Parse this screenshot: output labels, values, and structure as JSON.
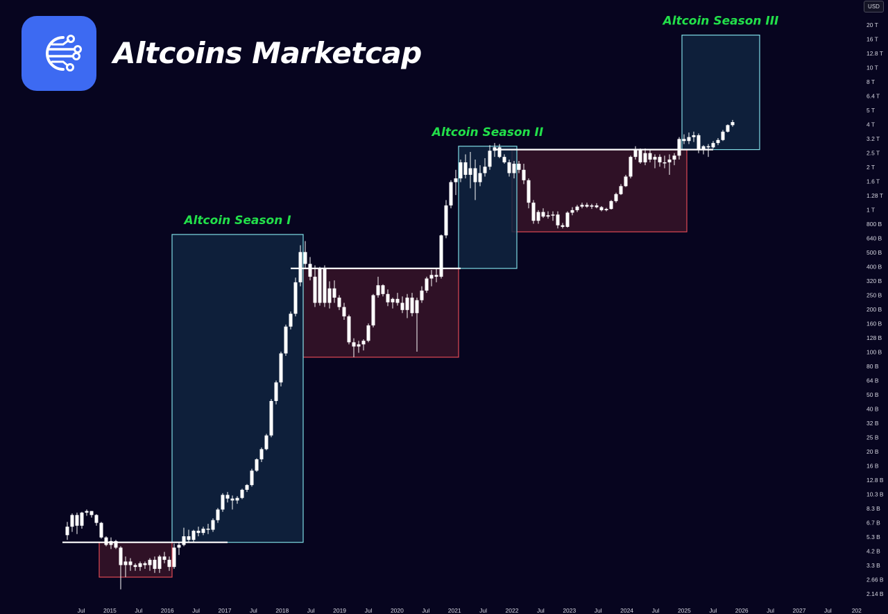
{
  "header": {
    "title": "Altcoins Marketcap",
    "logo_icon": "connected-nodes-icon",
    "logo_color": "#3d6af2"
  },
  "price_axis": {
    "currency": "USD",
    "labels": [
      "20 T",
      "16 T",
      "12.8 T",
      "10 T",
      "8 T",
      "6.4 T",
      "5 T",
      "4 T",
      "3.2 T",
      "2.5 T",
      "2 T",
      "1.6 T",
      "1.28 T",
      "1 T",
      "800 B",
      "640 B",
      "500 B",
      "400 B",
      "320 B",
      "250 B",
      "200 B",
      "160 B",
      "128 B",
      "100 B",
      "80 B",
      "64 B",
      "50 B",
      "40 B",
      "32 B",
      "25 B",
      "20 B",
      "16 B",
      "12.8 B",
      "10.3 B",
      "8.3 B",
      "6.7 B",
      "5.3 B",
      "4.2 B",
      "3.3 B",
      "2.66 B",
      "2.14 B"
    ]
  },
  "time_axis": {
    "labels": [
      "Jul",
      "2015",
      "Jul",
      "2016",
      "Jul",
      "2017",
      "Jul",
      "2018",
      "Jul",
      "2019",
      "Jul",
      "2020",
      "Jul",
      "2021",
      "Jul",
      "2022",
      "Jul",
      "2023",
      "Jul",
      "2024",
      "Jul",
      "2025",
      "Jul",
      "2026",
      "Jul",
      "2027",
      "Jul",
      "202"
    ]
  },
  "seasons": [
    {
      "label": "Altcoin Season I"
    },
    {
      "label": "Altcoin Season II"
    },
    {
      "label": "Altcoin Season III"
    }
  ],
  "colors": {
    "background": "#07051f",
    "season_label": "#22e04a",
    "season_box_border": "#7fdde6",
    "season_box_fill": "#0f2540",
    "range_box_border": "#e04a55",
    "range_box_fill": "#3a1428",
    "candle": "#ffffff",
    "axis_text": "#d6d6e0"
  },
  "chart_data": {
    "type": "candlestick",
    "scale": "log",
    "y_unit": "USD",
    "period": "monthly",
    "series": [
      {
        "name": "Altcoins Marketcap",
        "candles": [
          [
            "2014-06",
            5.5,
            6.8,
            5.1,
            6.3
          ],
          [
            "2014-07",
            6.3,
            7.8,
            5.8,
            7.6
          ],
          [
            "2014-08",
            7.6,
            7.9,
            5.6,
            6.4
          ],
          [
            "2014-09",
            6.4,
            8.0,
            6.1,
            7.9
          ],
          [
            "2014-10",
            7.9,
            8.3,
            7.5,
            8.1
          ],
          [
            "2014-11",
            8.1,
            8.1,
            7.3,
            7.6
          ],
          [
            "2014-12",
            7.6,
            7.7,
            6.4,
            6.7
          ],
          [
            "2015-01",
            6.7,
            6.8,
            5.2,
            5.3
          ],
          [
            "2015-02",
            5.3,
            5.4,
            4.6,
            4.7
          ],
          [
            "2015-03",
            4.7,
            5.3,
            4.4,
            5.0
          ],
          [
            "2015-04",
            5.0,
            5.1,
            4.4,
            4.5
          ],
          [
            "2015-05",
            4.5,
            4.6,
            2.3,
            3.4
          ],
          [
            "2015-06",
            3.4,
            3.9,
            2.8,
            3.6
          ],
          [
            "2015-07",
            3.6,
            3.8,
            3.1,
            3.4
          ],
          [
            "2015-08",
            3.4,
            3.5,
            3.1,
            3.3
          ],
          [
            "2015-09",
            3.3,
            3.6,
            3.1,
            3.5
          ],
          [
            "2015-10",
            3.5,
            3.6,
            3.2,
            3.4
          ],
          [
            "2015-11",
            3.4,
            3.8,
            3.1,
            3.7
          ],
          [
            "2015-12",
            3.7,
            3.9,
            3.0,
            3.2
          ],
          [
            "2016-01",
            3.2,
            4.0,
            3.0,
            3.9
          ],
          [
            "2016-02",
            3.9,
            4.2,
            3.5,
            3.7
          ],
          [
            "2016-03",
            3.7,
            3.9,
            3.1,
            3.3
          ],
          [
            "2016-04",
            3.3,
            4.8,
            3.2,
            4.5
          ],
          [
            "2016-05",
            4.5,
            4.9,
            4.0,
            4.7
          ],
          [
            "2016-06",
            4.7,
            6.2,
            4.6,
            5.4
          ],
          [
            "2016-07",
            5.4,
            6.0,
            4.9,
            5.1
          ],
          [
            "2016-08",
            5.1,
            6.0,
            4.9,
            5.9
          ],
          [
            "2016-09",
            5.9,
            6.3,
            5.4,
            5.7
          ],
          [
            "2016-10",
            5.7,
            6.3,
            5.5,
            6.1
          ],
          [
            "2016-11",
            6.1,
            6.6,
            5.6,
            6.0
          ],
          [
            "2016-12",
            6.0,
            7.2,
            5.8,
            7.0
          ],
          [
            "2017-01",
            7.0,
            8.5,
            6.7,
            8.3
          ],
          [
            "2017-02",
            8.3,
            10.8,
            8.0,
            10.5
          ],
          [
            "2017-03",
            10.5,
            11.0,
            9.3,
            9.9
          ],
          [
            "2017-04",
            9.9,
            10.4,
            8.3,
            9.6
          ],
          [
            "2017-05",
            9.6,
            10.3,
            9.1,
            10.0
          ],
          [
            "2017-06",
            10.0,
            11.6,
            9.8,
            11.4
          ],
          [
            "2017-07",
            11.4,
            12.5,
            11.0,
            12.3
          ],
          [
            "2017-08",
            12.3,
            16.0,
            12.0,
            15.5
          ],
          [
            "2017-09",
            15.5,
            18.9,
            15.2,
            18.6
          ],
          [
            "2017-10",
            18.6,
            22.5,
            17.8,
            21.9
          ],
          [
            "2017-11",
            21.9,
            28.0,
            21.5,
            27.3
          ],
          [
            "2017-12",
            27.3,
            49.0,
            26.5,
            47.5
          ],
          [
            "2018-01",
            47.5,
            66.0,
            45.0,
            64.0
          ],
          [
            "2018-02",
            64.0,
            105.0,
            60.0,
            102.0
          ],
          [
            "2018-03",
            102.0,
            162.0,
            98.0,
            157.0
          ],
          [
            "2018-04",
            157.0,
            200.0,
            150.0,
            193.0
          ],
          [
            "2018-05",
            193.0,
            345.0,
            185.0,
            320.0
          ],
          [
            "2018-06",
            320.0,
            580.0,
            300.0,
            520.0
          ],
          [
            "2018-07",
            520.0,
            620.0,
            395.0,
            430.0
          ],
          [
            "2018-08",
            430.0,
            480.0,
            330.0,
            350.0
          ],
          [
            "2018-09",
            350.0,
            420.0,
            215.0,
            230.0
          ],
          [
            "2018-10",
            230.0,
            410.0,
            220.0,
            400.0
          ],
          [
            "2018-11",
            400.0,
            420.0,
            215.0,
            230.0
          ],
          [
            "2018-12",
            230.0,
            325.0,
            210.0,
            290.0
          ],
          [
            "2019-01",
            290.0,
            330.0,
            230.0,
            250.0
          ],
          [
            "2019-02",
            250.0,
            260.0,
            205.0,
            215.0
          ],
          [
            "2019-03",
            215.0,
            230.0,
            175.0,
            185.0
          ],
          [
            "2019-04",
            185.0,
            190.0,
            118.0,
            122.0
          ],
          [
            "2019-05",
            122.0,
            130.0,
            96.0,
            114.0
          ],
          [
            "2019-06",
            114.0,
            125.0,
            103.0,
            118.0
          ],
          [
            "2019-07",
            118.0,
            128.0,
            107.0,
            125.0
          ],
          [
            "2019-08",
            125.0,
            165.0,
            122.0,
            160.0
          ],
          [
            "2019-09",
            160.0,
            265.0,
            155.0,
            260.0
          ],
          [
            "2019-10",
            260.0,
            350.0,
            250.0,
            305.0
          ],
          [
            "2019-11",
            305.0,
            310.0,
            255.0,
            265.0
          ],
          [
            "2019-12",
            265.0,
            285.0,
            218.0,
            232.0
          ],
          [
            "2020-01",
            232.0,
            250.0,
            210.0,
            245.0
          ],
          [
            "2020-02",
            245.0,
            270.0,
            220.0,
            230.0
          ],
          [
            "2020-03",
            230.0,
            255.0,
            195.0,
            205.0
          ],
          [
            "2020-04",
            205.0,
            265.0,
            180.0,
            250.0
          ],
          [
            "2020-05",
            250.0,
            270.0,
            185.0,
            195.0
          ],
          [
            "2020-06",
            195.0,
            250.0,
            105.0,
            240.0
          ],
          [
            "2020-07",
            240.0,
            300.0,
            230.0,
            280.0
          ],
          [
            "2020-08",
            280.0,
            350.0,
            270.0,
            340.0
          ],
          [
            "2020-09",
            340.0,
            390.0,
            300.0,
            360.0
          ],
          [
            "2020-10",
            360.0,
            400.0,
            320.0,
            350.0
          ],
          [
            "2020-11",
            350.0,
            690.0,
            340.0,
            680.0
          ],
          [
            "2020-12",
            680.0,
            1200.0,
            650.0,
            1100.0
          ],
          [
            "2021-01",
            1100.0,
            1650.0,
            1050.0,
            1600.0
          ],
          [
            "2021-02",
            1600.0,
            1950.0,
            1300.0,
            1700.0
          ],
          [
            "2021-03",
            1700.0,
            2300.0,
            1600.0,
            2200.0
          ],
          [
            "2021-04",
            2200.0,
            2500.0,
            1700.0,
            1800.0
          ],
          [
            "2021-05",
            1800.0,
            2600.0,
            1450.0,
            2000.0
          ],
          [
            "2021-06",
            2000.0,
            2300.0,
            1200.0,
            1600.0
          ],
          [
            "2021-07",
            1600.0,
            2100.0,
            1500.0,
            1850.0
          ],
          [
            "2021-08",
            1850.0,
            2350.0,
            1750.0,
            2050.0
          ],
          [
            "2021-09",
            2050.0,
            2900.0,
            1950.0,
            2650.0
          ],
          [
            "2021-10",
            2650.0,
            3000.0,
            2400.0,
            2800.0
          ],
          [
            "2021-11",
            2800.0,
            2950.0,
            2350.0,
            2400.0
          ],
          [
            "2021-12",
            2400.0,
            2500.0,
            2150.0,
            2200.0
          ],
          [
            "2022-01",
            2200.0,
            2300.0,
            1750.0,
            1850.0
          ],
          [
            "2022-02",
            1850.0,
            2250.0,
            1700.0,
            2150.0
          ],
          [
            "2022-03",
            2150.0,
            2250.0,
            1850.0,
            1950.0
          ],
          [
            "2022-04",
            1950.0,
            2150.0,
            1550.0,
            1650.0
          ],
          [
            "2022-05",
            1650.0,
            1700.0,
            1050.0,
            1150.0
          ],
          [
            "2022-06",
            1150.0,
            1200.0,
            820.0,
            860.0
          ],
          [
            "2022-07",
            860.0,
            1020.0,
            820.0,
            990.0
          ],
          [
            "2022-08",
            990.0,
            1050.0,
            900.0,
            920.0
          ],
          [
            "2022-09",
            920.0,
            1000.0,
            890.0,
            940.0
          ],
          [
            "2022-10",
            940.0,
            1000.0,
            860.0,
            950.0
          ],
          [
            "2022-11",
            950.0,
            1000.0,
            760.0,
            800.0
          ],
          [
            "2022-12",
            800.0,
            830.0,
            760.0,
            780.0
          ],
          [
            "2023-01",
            780.0,
            1000.0,
            770.0,
            980.0
          ],
          [
            "2023-02",
            980.0,
            1070.0,
            940.0,
            1020.0
          ],
          [
            "2023-03",
            1020.0,
            1110.0,
            990.0,
            1080.0
          ],
          [
            "2023-04",
            1080.0,
            1150.0,
            1050.0,
            1110.0
          ],
          [
            "2023-05",
            1110.0,
            1150.0,
            1060.0,
            1080.0
          ],
          [
            "2023-06",
            1080.0,
            1130.0,
            1040.0,
            1100.0
          ],
          [
            "2023-07",
            1100.0,
            1140.0,
            1050.0,
            1070.0
          ],
          [
            "2023-08",
            1070.0,
            1090.0,
            1000.0,
            1020.0
          ],
          [
            "2023-09",
            1020.0,
            1060.0,
            1000.0,
            1040.0
          ],
          [
            "2023-10",
            1040.0,
            1200.0,
            1030.0,
            1180.0
          ],
          [
            "2023-11",
            1180.0,
            1350.0,
            1150.0,
            1320.0
          ],
          [
            "2023-12",
            1320.0,
            1550.0,
            1300.0,
            1500.0
          ],
          [
            "2024-01",
            1500.0,
            1800.0,
            1480.0,
            1750.0
          ],
          [
            "2024-02",
            1750.0,
            2450.0,
            1700.0,
            2400.0
          ],
          [
            "2024-03",
            2400.0,
            2850.0,
            2300.0,
            2700.0
          ],
          [
            "2024-04",
            2700.0,
            2750.0,
            2150.0,
            2200.0
          ],
          [
            "2024-05",
            2200.0,
            2750.0,
            2100.0,
            2550.0
          ],
          [
            "2024-06",
            2550.0,
            2700.0,
            2200.0,
            2300.0
          ],
          [
            "2024-07",
            2300.0,
            2500.0,
            2000.0,
            2400.0
          ],
          [
            "2024-08",
            2400.0,
            2500.0,
            2050.0,
            2200.0
          ],
          [
            "2024-09",
            2200.0,
            2450.0,
            2000.0,
            2200.0
          ],
          [
            "2024-10",
            2200.0,
            2500.0,
            1800.0,
            2300.0
          ],
          [
            "2024-11",
            2300.0,
            2550.0,
            2100.0,
            2450.0
          ],
          [
            "2024-12",
            2450.0,
            3300.0,
            2300.0,
            3200.0
          ],
          [
            "2025-01",
            3200.0,
            3450.0,
            2950.0,
            3100.0
          ],
          [
            "2025-02",
            3100.0,
            3550.0,
            2950.0,
            3300.0
          ],
          [
            "2025-03",
            3300.0,
            3600.0,
            3050.0,
            3400.0
          ],
          [
            "2025-04",
            3400.0,
            3500.0,
            2550.0,
            2700.0
          ],
          [
            "2025-05",
            2700.0,
            2900.0,
            2500.0,
            2850.0
          ],
          [
            "2025-06",
            2850.0,
            2950.0,
            2400.0,
            2800.0
          ],
          [
            "2025-07",
            2800.0,
            3100.0,
            2750.0,
            3000.0
          ],
          [
            "2025-08",
            3000.0,
            3250.0,
            2900.0,
            3150.0
          ],
          [
            "2025-09",
            3150.0,
            3700.0,
            3100.0,
            3600.0
          ],
          [
            "2025-10",
            3600.0,
            4050.0,
            3550.0,
            4000.0
          ],
          [
            "2025-11",
            4000.0,
            4350.0,
            3900.0,
            4200.0
          ]
        ]
      }
    ],
    "resistance_levels": [
      4.9,
      400,
      2700
    ],
    "accumulation_ranges": [
      {
        "start": "2015-01",
        "end": "2016-03",
        "low": 2.8,
        "high": 4.9
      },
      {
        "start": "2018-07",
        "end": "2021-02",
        "low": 96,
        "high": 400
      },
      {
        "start": "2022-02",
        "end": "2025-01",
        "low": 720,
        "high": 2700
      }
    ],
    "season_ranges": [
      {
        "start": "2016-04",
        "end": "2018-06",
        "low": 4.9,
        "high": 690
      },
      {
        "start": "2021-03",
        "end": "2022-02",
        "low": 400,
        "high": 2850
      },
      {
        "start": "2025-01",
        "end": "2026-04",
        "low": 2700,
        "high": 17000
      }
    ],
    "ylim": [
      2000000000,
      22000000000000
    ],
    "xlim": [
      "2014-05",
      "2027-12"
    ],
    "grid": false
  }
}
